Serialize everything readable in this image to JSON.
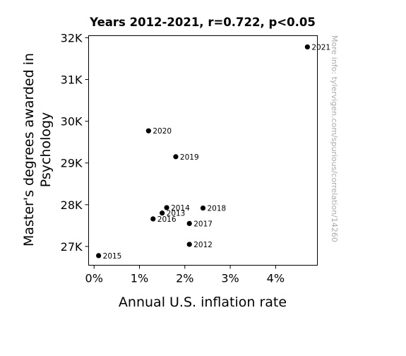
{
  "chart_data": {
    "type": "scatter",
    "title": "Years 2012-2021, r=0.722, p<0.05",
    "xlabel": "Annual U.S. inflation rate",
    "ylabel_lines": [
      "Master's degrees awarded in",
      "Psychology"
    ],
    "xlim": [
      -0.0012,
      0.0492
    ],
    "ylim": [
      26550,
      32050
    ],
    "x_ticks": [
      {
        "value": 0.0,
        "label": "0%"
      },
      {
        "value": 0.01,
        "label": "1%"
      },
      {
        "value": 0.02,
        "label": "2%"
      },
      {
        "value": 0.03,
        "label": "3%"
      },
      {
        "value": 0.04,
        "label": "4%"
      }
    ],
    "y_ticks": [
      {
        "value": 27000,
        "label": "27K"
      },
      {
        "value": 28000,
        "label": "28K"
      },
      {
        "value": 29000,
        "label": "29K"
      },
      {
        "value": 30000,
        "label": "30K"
      },
      {
        "value": 31000,
        "label": "31K"
      },
      {
        "value": 32000,
        "label": "32K"
      }
    ],
    "points": [
      {
        "label": "2012",
        "x": 0.021,
        "y": 27050
      },
      {
        "label": "2013",
        "x": 0.015,
        "y": 27800
      },
      {
        "label": "2014",
        "x": 0.016,
        "y": 27930
      },
      {
        "label": "2015",
        "x": 0.001,
        "y": 26780
      },
      {
        "label": "2016",
        "x": 0.013,
        "y": 27660
      },
      {
        "label": "2017",
        "x": 0.021,
        "y": 27550
      },
      {
        "label": "2018",
        "x": 0.024,
        "y": 27920
      },
      {
        "label": "2019",
        "x": 0.018,
        "y": 29150
      },
      {
        "label": "2020",
        "x": 0.012,
        "y": 29770
      },
      {
        "label": "2021",
        "x": 0.047,
        "y": 31780
      }
    ],
    "marker_color": "#000000",
    "grid": false,
    "watermark": "More info: tylervigen.com/spurious/correlation/14260",
    "watermark_color": "#aaaaaa"
  }
}
